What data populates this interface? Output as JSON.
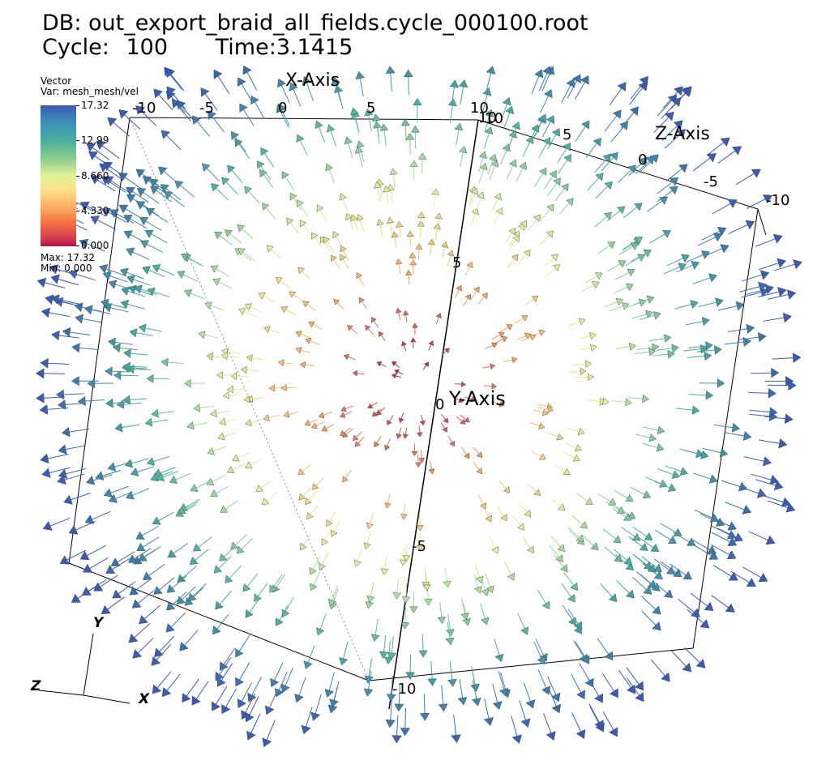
{
  "header": {
    "db_line": "DB: out_export_braid_all_fields.cycle_000100.root",
    "cycle_label": "Cycle:",
    "cycle_value": "100",
    "time_label": "Time:",
    "time_value": "3.1415"
  },
  "legend": {
    "plot_type": "Vector",
    "variable": "Var: mesh_mesh/vel",
    "ticks": [
      "17.32",
      "12.99",
      "8.660",
      "4.330",
      "0.000"
    ],
    "max_label": "Max:  17.32",
    "min_label": "Min:  0.000",
    "colormap": [
      "#3c5bb0",
      "#4aaea0",
      "#e2f29c",
      "#fdae61",
      "#b0124b"
    ]
  },
  "axes": {
    "x_title": "X-Axis",
    "y_title": "Y-Axis",
    "z_title": "Z-Axis",
    "x_ticks": [
      "-10",
      "-5",
      "0",
      "5",
      "10"
    ],
    "z_ticks": [
      "10",
      "5",
      "0",
      "-5",
      "-10"
    ],
    "y_ticks": [
      "10",
      "5",
      "0",
      "-5",
      "-10"
    ]
  },
  "triad": {
    "x": "X",
    "y": "Y",
    "z": "Z"
  }
}
